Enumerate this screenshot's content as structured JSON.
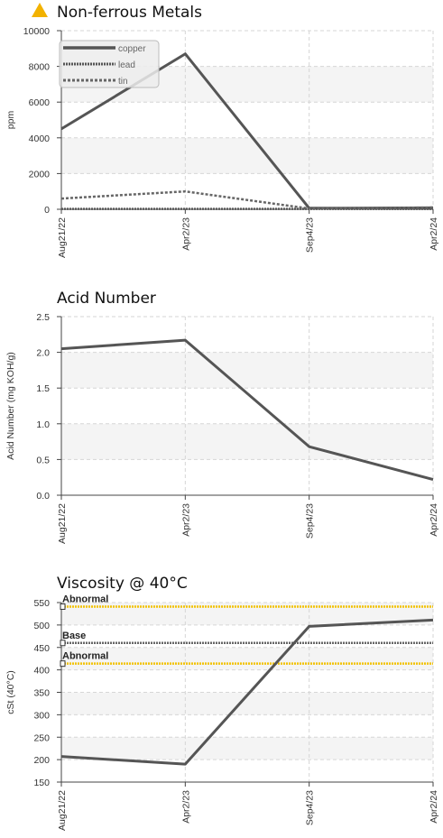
{
  "charts": {
    "metals": {
      "title": "Non-ferrous Metals",
      "icon": "warning-triangle-icon",
      "icon_color": "#f2b200"
    },
    "acid": {
      "title": "Acid Number"
    },
    "visc": {
      "title": "Viscosity @ 40°C"
    }
  },
  "chart_data": [
    {
      "type": "line",
      "title": "Non-ferrous Metals",
      "ylabel": "ppm",
      "xlabel": "",
      "ylim": [
        0,
        10000
      ],
      "yticks": [
        0,
        2000,
        4000,
        6000,
        8000,
        10000
      ],
      "categories": [
        "Aug21/22",
        "Apr2/23",
        "Sep4/23",
        "Apr2/24"
      ],
      "grid": true,
      "legend_position": "top-left",
      "series": [
        {
          "name": "copper",
          "values": [
            4500,
            8700,
            60,
            80
          ],
          "color": "#555555",
          "style": "solid"
        },
        {
          "name": "lead",
          "values": [
            20,
            20,
            20,
            20
          ],
          "color": "#555555",
          "style": "dotted"
        },
        {
          "name": "tin",
          "values": [
            600,
            1000,
            40,
            100
          ],
          "color": "#666666",
          "style": "dashed"
        }
      ]
    },
    {
      "type": "line",
      "title": "Acid Number",
      "ylabel": "Acid Number (mg KOH/g)",
      "xlabel": "",
      "ylim": [
        0,
        2.5
      ],
      "yticks": [
        0.0,
        0.5,
        1.0,
        1.5,
        2.0,
        2.5
      ],
      "categories": [
        "Aug21/22",
        "Apr2/23",
        "Sep4/23",
        "Apr2/24"
      ],
      "grid": true,
      "series": [
        {
          "values": [
            2.05,
            2.17,
            0.68,
            0.22
          ],
          "color": "#555555",
          "style": "solid"
        }
      ]
    },
    {
      "type": "line",
      "title": "Viscosity @ 40°C",
      "ylabel": "cSt (40°C)",
      "xlabel": "",
      "ylim": [
        150,
        550
      ],
      "yticks": [
        150,
        200,
        250,
        300,
        350,
        400,
        450,
        500,
        550
      ],
      "categories": [
        "Aug21/22",
        "Apr2/23",
        "Sep4/23",
        "Apr2/24"
      ],
      "grid": true,
      "series": [
        {
          "values": [
            207,
            190,
            497,
            511
          ],
          "color": "#555555",
          "style": "solid"
        }
      ],
      "reference_lines": [
        {
          "label": "Abnormal",
          "value": 541,
          "color": "#f2c200"
        },
        {
          "label": "Base",
          "value": 460,
          "color": "#666666"
        },
        {
          "label": "Abnormal",
          "value": 414,
          "color": "#f2c200"
        }
      ]
    }
  ]
}
